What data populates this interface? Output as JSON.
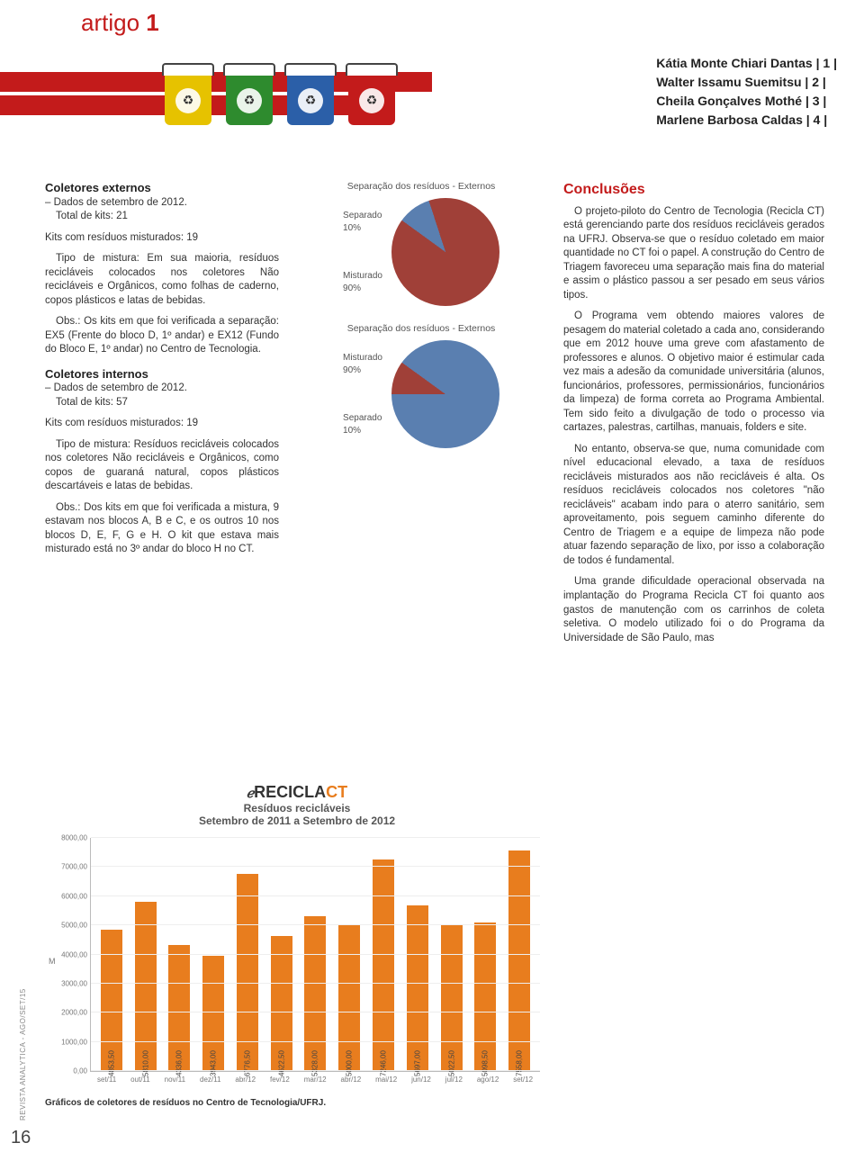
{
  "header": {
    "section_word": "artigo",
    "section_num": "1",
    "authors": [
      "Kátia Monte Chiari Dantas | 1 |",
      "Walter Issamu Suemitsu | 2 |",
      "Cheila Gonçalves Mothé | 3 |",
      "Marlene Barbosa Caldas | 4 |"
    ],
    "bin_colors": [
      "#e6c200",
      "#2e8b2e",
      "#2b5fa8",
      "#c31b1b"
    ]
  },
  "left_column": {
    "h1": "Coletores externos",
    "h1_sub": "– Dados de setembro de 2012.",
    "p1": "Total de kits: 21",
    "p2": "Kits com resíduos misturados: 19",
    "p3": "Tipo de mistura: Em sua maioria, resíduos recicláveis colocados nos coletores Não recicláveis e Orgânicos, como folhas de caderno, copos plásticos e latas de bebidas.",
    "p4": "Obs.: Os kits em que foi verificada a separação: EX5 (Frente do bloco D, 1º andar) e EX12 (Fundo do Bloco E, 1º andar) no Centro de Tecnologia.",
    "h2": "Coletores internos",
    "h2_sub": "– Dados de setembro de 2012.",
    "p5": "Total de kits: 57",
    "p6": "Kits com resíduos misturados: 19",
    "p7": "Tipo de mistura: Resíduos recicláveis colocados nos coletores Não recicláveis e Orgânicos, como copos de guaraná natural, copos plásticos descartáveis e latas de bebidas.",
    "p8": "Obs.: Dos kits em que foi verificada a mistura, 9 estavam nos blocos A, B e C, e os outros 10 nos blocos D, E, F, G e H. O kit que estava mais misturado está no 3º andar do bloco H no CT."
  },
  "pies": {
    "pie1": {
      "title": "Separação dos resíduos - Externos",
      "slices": [
        {
          "label": "Separado",
          "value": 10,
          "color": "#5a7fb0"
        },
        {
          "label": "Misturado",
          "value": 90,
          "color": "#a04038"
        }
      ],
      "label_top": "Separado\n10%",
      "label_bottom": "Misturado\n90%"
    },
    "pie2": {
      "title": "Separação dos resíduos - Externos",
      "slices": [
        {
          "label": "Misturado",
          "value": 90,
          "color": "#5a7fb0"
        },
        {
          "label": "Separado",
          "value": 10,
          "color": "#a04038"
        }
      ],
      "label_top": "Misturado\n90%",
      "label_bottom": "Separado\n10%"
    }
  },
  "barchart": {
    "logo_prefix": "RECICLA",
    "logo_suffix": "CT",
    "title": "Resíduos recicláveis",
    "subtitle": "Setembro de 2011 a Setembro de 2012",
    "y_axis": "M",
    "ylim": [
      0,
      8000
    ],
    "ytick_step": 1000,
    "ytick_format": ",00",
    "bar_color": "#e87d1e",
    "grid_color": "#eeeeee",
    "categories": [
      "set/11",
      "out/11",
      "nov/11",
      "dez/11",
      "abr/12",
      "fev/12",
      "mar/12",
      "abr/12",
      "mai/12",
      "jun/12",
      "jul/12",
      "ago/12",
      "set/12"
    ],
    "values": [
      4853.5,
      5810.0,
      4336.0,
      3943.0,
      6776.5,
      4622.5,
      5328.0,
      5000.0,
      7246.0,
      5697.0,
      5022.5,
      5098.5,
      7558.0
    ],
    "value_labels": [
      "4853,50",
      "5810,00",
      "4336,00",
      "3943,00",
      "6776,50",
      "4622,50",
      "5328,00",
      "5000,00",
      "7246,00",
      "5697,00",
      "5022,50",
      "5098,50",
      "7558,00"
    ],
    "caption": "Gráficos de coletores de resíduos no Centro de Tecnologia/UFRJ."
  },
  "right_column": {
    "title": "Conclusões",
    "p1": "O projeto-piloto do Centro de Tecnologia (Recicla CT) está gerenciando parte dos resíduos recicláveis gerados na UFRJ. Observa-se que o resíduo coletado em maior quantidade no CT foi o papel. A construção do Centro de Triagem favoreceu uma separação mais fina do material e assim o plástico passou a ser pesado em seus vários tipos.",
    "p2": "O Programa vem obtendo maiores valores de pesagem do material coletado a cada ano, considerando que em 2012 houve uma greve com afastamento de professores e alunos. O objetivo maior é estimular cada vez mais a adesão da comunidade universitária (alunos, funcionários, professores, permissionários, funcionários da limpeza) de forma correta ao Programa Ambiental. Tem sido feito a divulgação de todo o processo via cartazes, palestras, cartilhas, manuais, folders e site.",
    "p3": "No entanto, observa-se que, numa comunidade com nível educacional elevado, a taxa de resíduos recicláveis misturados aos não recicláveis é alta. Os resíduos recicláveis colocados nos coletores \"não recicláveis\" acabam indo para o aterro sanitário, sem aproveitamento, pois seguem caminho diferente do Centro de Triagem e a equipe de limpeza não pode atuar fazendo separação de lixo, por isso a colaboração de todos é fundamental.",
    "p4": "Uma grande dificuldade operacional observada na implantação do Programa Recicla CT foi quanto aos gastos de manutenção com os carrinhos de coleta seletiva. O modelo utilizado foi o do Programa da Universidade de São Paulo, mas"
  },
  "sidebar": {
    "page_num": "16",
    "vertical": "REVISTA ANALYTICA - AGO/SET/15"
  }
}
